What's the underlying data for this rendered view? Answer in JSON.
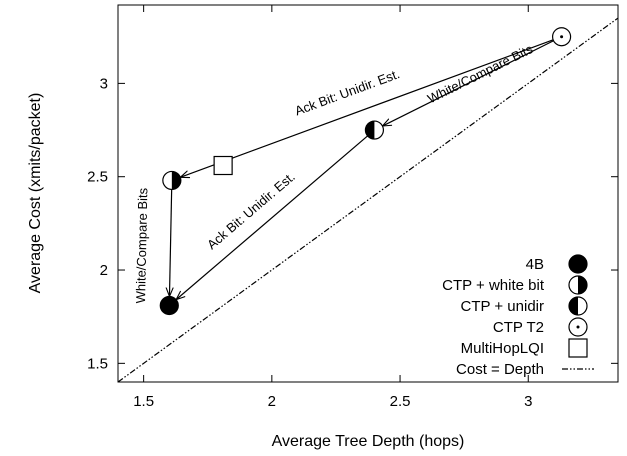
{
  "chart_data": {
    "type": "scatter",
    "title": "",
    "xlabel": "Average Tree Depth (hops)",
    "ylabel": "Average Cost (xmits/packet)",
    "xlim": [
      1.4,
      3.35
    ],
    "ylim": [
      1.4,
      3.42
    ],
    "xticks": [
      1.5,
      2,
      2.5,
      3
    ],
    "yticks": [
      1.5,
      2,
      2.5,
      3
    ],
    "xtick_labels": [
      "1.5",
      "2",
      "2.5",
      "3"
    ],
    "ytick_labels": [
      "1.5",
      "2",
      "2.5",
      "3"
    ],
    "grid": false,
    "legend_position": "bottom-right",
    "series": [
      {
        "name": "4B",
        "marker": "filled-circle",
        "points": [
          {
            "x": 1.6,
            "y": 1.81
          }
        ]
      },
      {
        "name": "CTP + white bit",
        "marker": "half-right-circle",
        "points": [
          {
            "x": 1.61,
            "y": 2.48
          }
        ]
      },
      {
        "name": "CTP + unidir",
        "marker": "half-left-circle",
        "points": [
          {
            "x": 2.4,
            "y": 2.75
          }
        ]
      },
      {
        "name": "CTP T2",
        "marker": "dot-circle",
        "points": [
          {
            "x": 3.13,
            "y": 3.25
          }
        ]
      },
      {
        "name": "MultiHopLQI",
        "marker": "square",
        "points": [
          {
            "x": 1.81,
            "y": 2.56
          }
        ]
      },
      {
        "name": "Cost = Depth",
        "marker": "dash-dot-line",
        "line": [
          [
            1.4,
            1.4
          ],
          [
            3.35,
            3.35
          ]
        ]
      }
    ],
    "annotations": [
      {
        "text": "Ack Bit: Unidir. Est.",
        "from": [
          3.13,
          3.25
        ],
        "to": [
          1.61,
          2.48
        ],
        "label_at": [
          2.3,
          2.93
        ]
      },
      {
        "text": "White/Compare Bits",
        "from": [
          3.13,
          3.25
        ],
        "to": [
          2.4,
          2.75
        ],
        "label_at": [
          2.82,
          3.03
        ]
      },
      {
        "text": "White/Compare Bits",
        "from": [
          1.61,
          2.48
        ],
        "to": [
          1.6,
          1.81
        ],
        "label_at": [
          1.51,
          2.13
        ]
      },
      {
        "text": "Ack Bit: Unidir. Est.",
        "from": [
          2.4,
          2.75
        ],
        "to": [
          1.6,
          1.81
        ],
        "label_at": [
          1.93,
          2.3
        ]
      }
    ]
  }
}
